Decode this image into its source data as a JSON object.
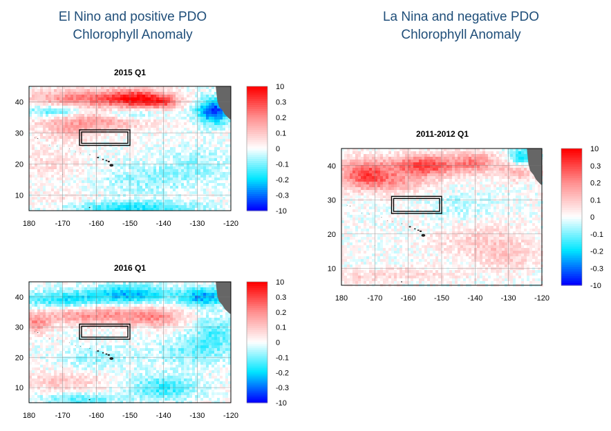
{
  "headings": {
    "left_line1": "El Nino and positive PDO",
    "left_line2": "Chlorophyll Anomaly",
    "right_line1": "La Nina and negative PDO",
    "right_line2": "Chlorophyll Anomaly"
  },
  "colors": {
    "positive": "#ff0000",
    "negative": "#0000ff",
    "near_negative": "#00e5ff",
    "neutral": "#ffffff",
    "land": "#666666",
    "heading": "#1f4e79"
  },
  "chart_data": [
    {
      "type": "heatmap",
      "title": "2015 Q1",
      "x_ticks": [
        "180",
        "-170",
        "-160",
        "-150",
        "-140",
        "-130",
        "-120"
      ],
      "y_ticks": [
        "40",
        "30",
        "20",
        "10"
      ],
      "xlim": [
        -180,
        -120
      ],
      "ylim": [
        5,
        45
      ],
      "grid": true,
      "colorbar_labels": [
        "10",
        "0.3",
        "0.2",
        "0.1",
        "0",
        "-0.1",
        "-0.2",
        "-0.3",
        "-10"
      ],
      "box": {
        "lon": [
          -165,
          -150
        ],
        "lat": [
          26,
          31
        ]
      }
    },
    {
      "type": "heatmap",
      "title": "2016 Q1",
      "x_ticks": [
        "180",
        "-170",
        "-160",
        "-150",
        "-140",
        "-130",
        "-120"
      ],
      "y_ticks": [
        "40",
        "30",
        "20",
        "10"
      ],
      "xlim": [
        -180,
        -120
      ],
      "ylim": [
        5,
        45
      ],
      "grid": true,
      "colorbar_labels": [
        "10",
        "0.3",
        "0.2",
        "0.1",
        "0",
        "-0.1",
        "-0.2",
        "-0.3",
        "-10"
      ],
      "box": {
        "lon": [
          -165,
          -150
        ],
        "lat": [
          26,
          31
        ]
      }
    },
    {
      "type": "heatmap",
      "title": "2011-2012 Q1",
      "x_ticks": [
        "180",
        "-170",
        "-160",
        "-150",
        "-140",
        "-130",
        "-120"
      ],
      "y_ticks": [
        "40",
        "30",
        "20",
        "10"
      ],
      "xlim": [
        -180,
        -120
      ],
      "ylim": [
        5,
        45
      ],
      "grid": true,
      "colorbar_labels": [
        "10",
        "0.3",
        "0.2",
        "0.1",
        "0",
        "-0.1",
        "-0.2",
        "-0.3",
        "-10"
      ],
      "box": {
        "lon": [
          -165,
          -150
        ],
        "lat": [
          26,
          31
        ]
      }
    }
  ]
}
